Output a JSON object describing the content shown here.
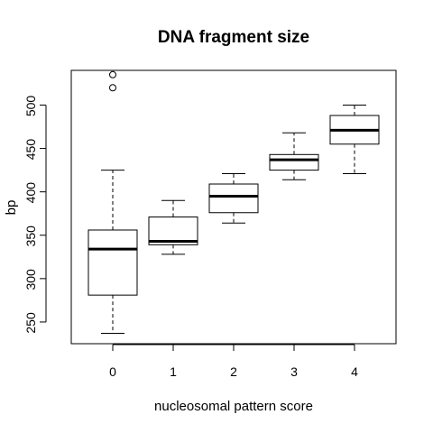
{
  "chart_data": {
    "type": "box",
    "title": "DNA fragment size",
    "xlabel": "nucleosomal pattern score",
    "ylabel": "bp",
    "categories": [
      "0",
      "1",
      "2",
      "3",
      "4"
    ],
    "ylim": [
      225,
      540
    ],
    "yticks": [
      250,
      300,
      350,
      400,
      450,
      500
    ],
    "grid": false,
    "boxes": [
      {
        "category": "0",
        "whisker_low": 237,
        "q1": 281,
        "median": 334,
        "q3": 356,
        "whisker_high": 425,
        "outliers": [
          520,
          535
        ]
      },
      {
        "category": "1",
        "whisker_low": 328,
        "q1": 339,
        "median": 343,
        "q3": 371,
        "whisker_high": 390,
        "outliers": []
      },
      {
        "category": "2",
        "whisker_low": 364,
        "q1": 376,
        "median": 395,
        "q3": 409,
        "whisker_high": 421,
        "outliers": []
      },
      {
        "category": "3",
        "whisker_low": 414,
        "q1": 425,
        "median": 437,
        "q3": 443,
        "whisker_high": 468,
        "outliers": []
      },
      {
        "category": "4",
        "whisker_low": 421,
        "q1": 455,
        "median": 471,
        "q3": 488,
        "whisker_high": 500,
        "outliers": []
      }
    ]
  }
}
